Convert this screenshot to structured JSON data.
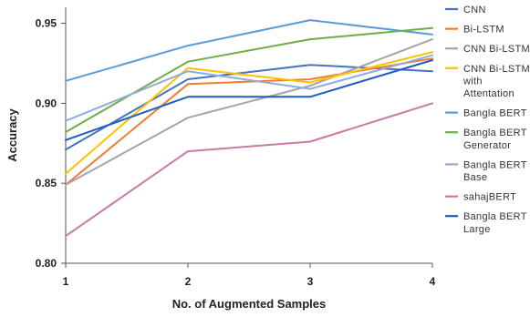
{
  "chart_data": {
    "type": "line",
    "xlabel": "No. of Augmented Samples",
    "ylabel": "Accuracy",
    "x": [
      1,
      2,
      3,
      4
    ],
    "x_tick_labels": [
      "1",
      "2",
      "3",
      "4"
    ],
    "y_tick_labels": [
      "0.80",
      "0.85",
      "0.90",
      "0.95"
    ],
    "ylim": [
      0.8,
      0.96
    ],
    "grid": false,
    "legend_position": "right",
    "series": [
      {
        "name": "CNN",
        "name_lines": [
          "CNN"
        ],
        "color": "#4472C4",
        "values": [
          0.871,
          0.915,
          0.924,
          0.92
        ]
      },
      {
        "name": "Bi-LSTM",
        "name_lines": [
          "Bi-LSTM"
        ],
        "color": "#ED7D31",
        "values": [
          0.849,
          0.912,
          0.915,
          0.928
        ]
      },
      {
        "name": "CNN Bi-LSTM",
        "name_lines": [
          "CNN Bi-LSTM"
        ],
        "color": "#A5A5A5",
        "values": [
          0.849,
          0.891,
          0.911,
          0.94
        ]
      },
      {
        "name": "CNN Bi-LSTM with Attentation",
        "name_lines": [
          "CNN Bi-LSTM",
          "with",
          "Attentation"
        ],
        "color": "#FFC000",
        "values": [
          0.856,
          0.922,
          0.913,
          0.932
        ]
      },
      {
        "name": "Bangla BERT",
        "name_lines": [
          "Bangla BERT"
        ],
        "color": "#5B9BD5",
        "values": [
          0.914,
          0.936,
          0.952,
          0.943
        ]
      },
      {
        "name": "Bangla BERT Generator",
        "name_lines": [
          "Bangla BERT",
          "Generator"
        ],
        "color": "#70AD47",
        "values": [
          0.882,
          0.926,
          0.94,
          0.947
        ]
      },
      {
        "name": "Bangla BERT Base",
        "name_lines": [
          "Bangla BERT",
          "Base"
        ],
        "color": "#8FAADC",
        "values": [
          0.889,
          0.92,
          0.909,
          0.93
        ]
      },
      {
        "name": "sahajBERT",
        "name_lines": [
          "sahajBERT"
        ],
        "color": "#C879A6",
        "values": [
          0.817,
          0.87,
          0.876,
          0.9
        ]
      },
      {
        "name": "Bangla BERT Large",
        "name_lines": [
          "Bangla BERT",
          "Large"
        ],
        "color": "#1F5CC4",
        "values": [
          0.877,
          0.904,
          0.904,
          0.927
        ]
      }
    ]
  }
}
